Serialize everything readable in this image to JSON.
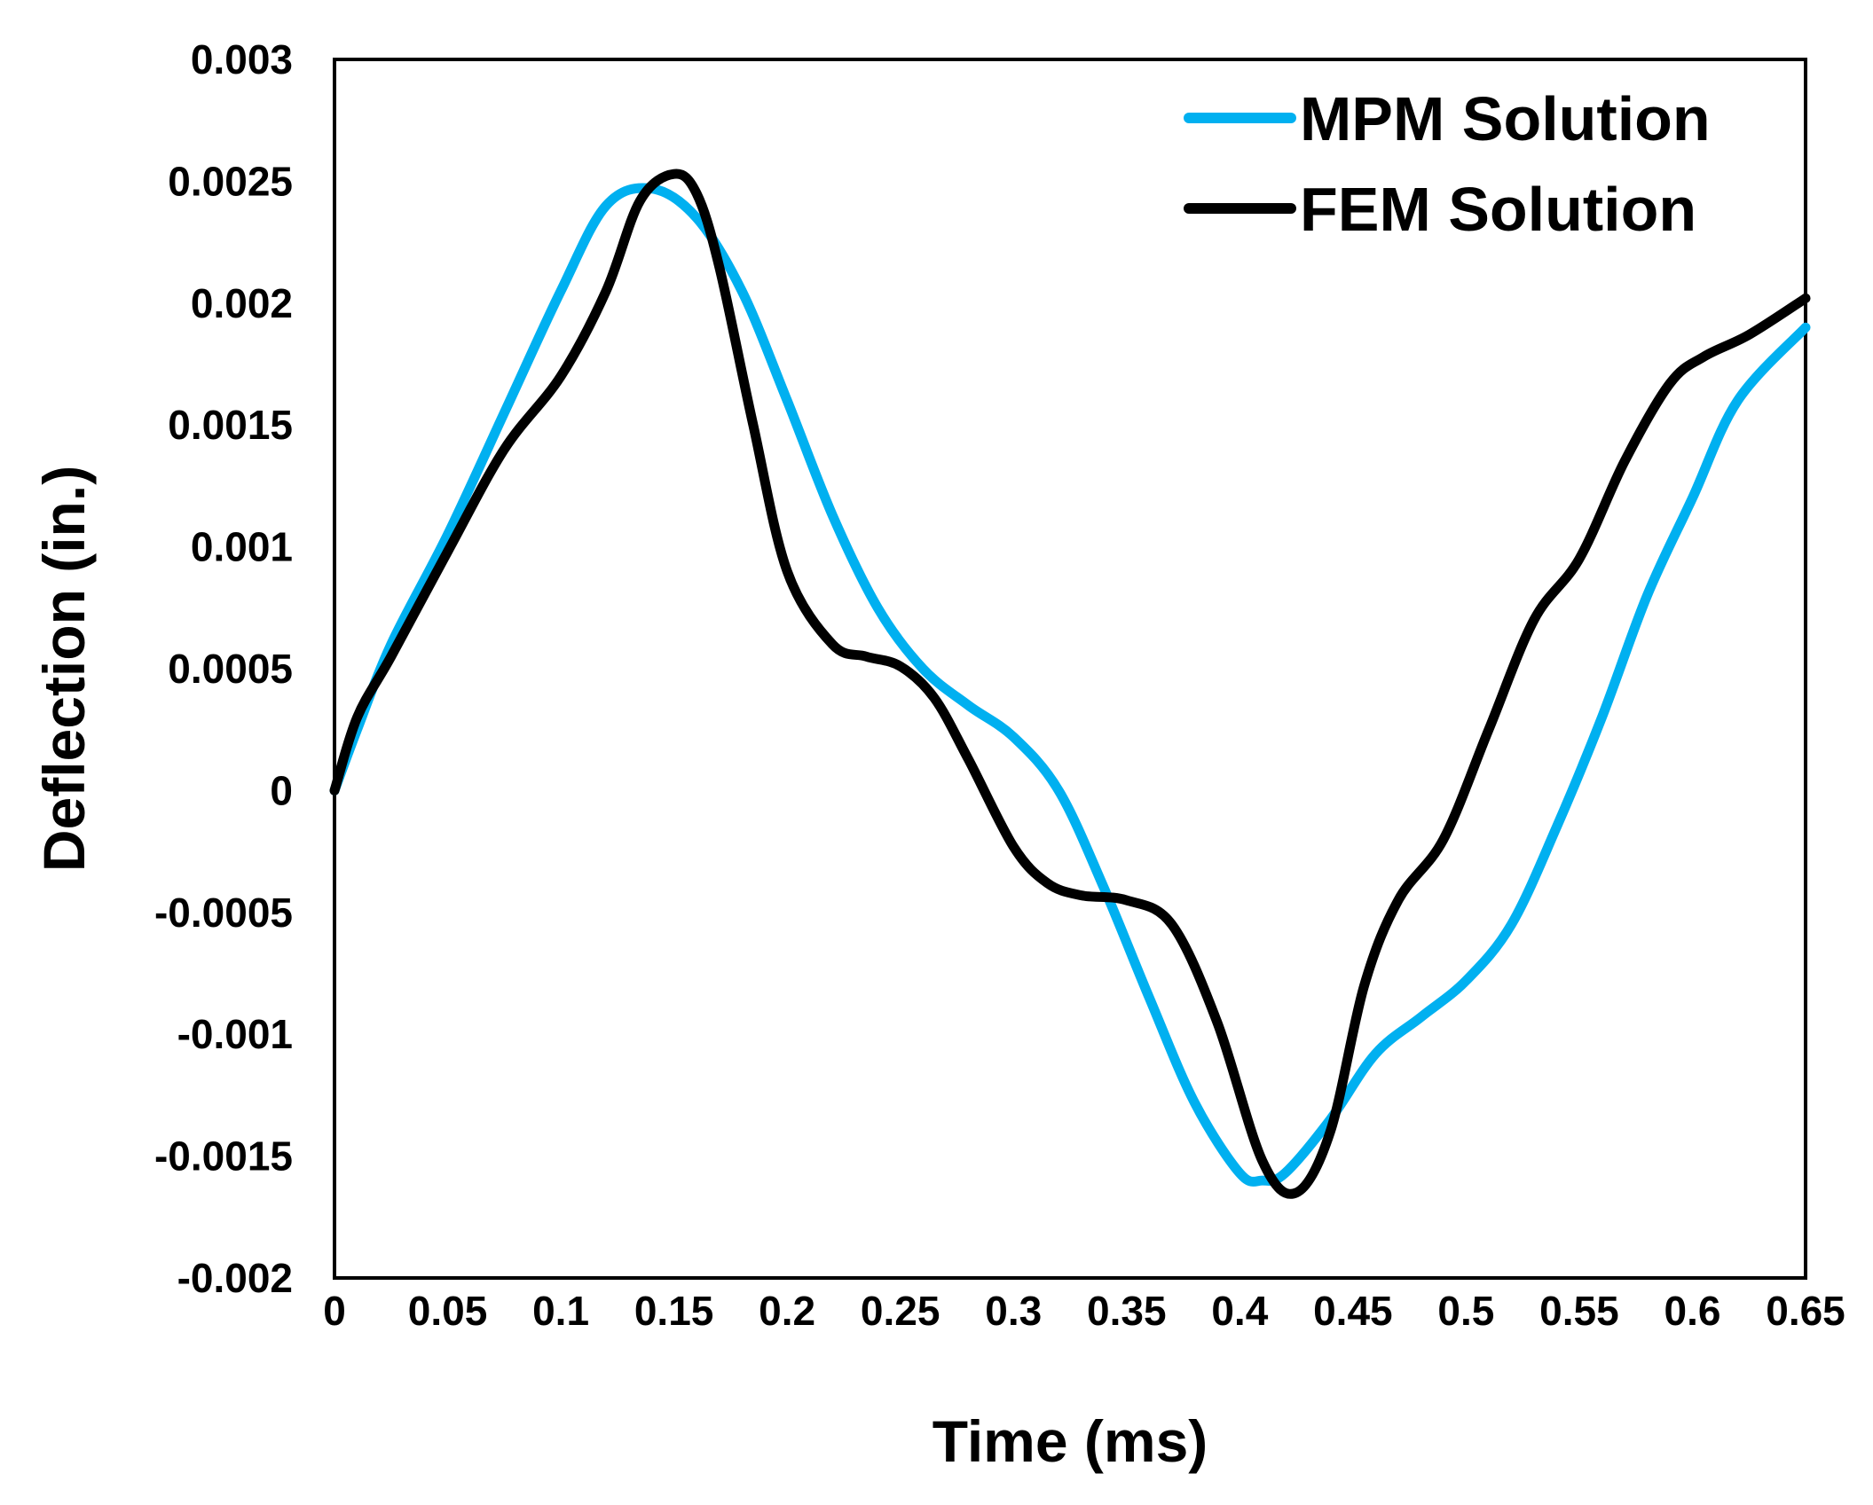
{
  "chart_data": {
    "type": "line",
    "title": "",
    "xlabel": "Time (ms)",
    "ylabel": "Deflection (in.)",
    "xlim": [
      0,
      0.65
    ],
    "ylim": [
      -0.002,
      0.003
    ],
    "grid": false,
    "legend_position": "top-right",
    "x_ticks": [
      "0",
      "0.05",
      "0.1",
      "0.15",
      "0.2",
      "0.25",
      "0.3",
      "0.35",
      "0.4",
      "0.45",
      "0.5",
      "0.55",
      "0.6",
      "0.65"
    ],
    "x_tick_values": [
      0,
      0.05,
      0.1,
      0.15,
      0.2,
      0.25,
      0.3,
      0.35,
      0.4,
      0.45,
      0.5,
      0.55,
      0.6,
      0.65
    ],
    "y_ticks": [
      "0.003",
      "0.0025",
      "0.002",
      "0.0015",
      "0.001",
      "0.0005",
      "0",
      "-0.0005",
      "-0.001",
      "-0.0015",
      "-0.002"
    ],
    "y_tick_values": [
      0.003,
      0.0025,
      0.002,
      0.0015,
      0.001,
      0.0005,
      0,
      -0.0005,
      -0.001,
      -0.0015,
      -0.002
    ],
    "series": [
      {
        "name": "MPM Solution",
        "color": "#00B0F0",
        "x": [
          0,
          0.01,
          0.025,
          0.05,
          0.075,
          0.1,
          0.12,
          0.14,
          0.16,
          0.18,
          0.2,
          0.22,
          0.24,
          0.26,
          0.28,
          0.3,
          0.32,
          0.34,
          0.36,
          0.38,
          0.4,
          0.41,
          0.42,
          0.44,
          0.46,
          0.48,
          0.5,
          0.52,
          0.54,
          0.56,
          0.58,
          0.6,
          0.62,
          0.65
        ],
        "y": [
          0,
          0.00025,
          0.0006,
          0.00105,
          0.00155,
          0.00205,
          0.0024,
          0.00247,
          0.00235,
          0.00205,
          0.0016,
          0.00113,
          0.00075,
          0.0005,
          0.00035,
          0.00022,
          0.0,
          -0.0004,
          -0.00085,
          -0.00128,
          -0.00157,
          -0.0016,
          -0.00157,
          -0.00135,
          -0.00108,
          -0.00093,
          -0.00078,
          -0.00055,
          -0.00015,
          0.0003,
          0.0008,
          0.0012,
          0.0016,
          0.0019
        ]
      },
      {
        "name": "FEM Solution",
        "color": "#000000",
        "x": [
          0,
          0.01,
          0.025,
          0.05,
          0.075,
          0.1,
          0.12,
          0.135,
          0.15,
          0.16,
          0.17,
          0.185,
          0.2,
          0.22,
          0.235,
          0.25,
          0.265,
          0.28,
          0.3,
          0.315,
          0.33,
          0.35,
          0.37,
          0.39,
          0.41,
          0.425,
          0.44,
          0.455,
          0.47,
          0.49,
          0.51,
          0.53,
          0.55,
          0.57,
          0.59,
          0.605,
          0.625,
          0.65
        ],
        "y": [
          0,
          0.0003,
          0.00055,
          0.00098,
          0.0014,
          0.0017,
          0.00205,
          0.00242,
          0.00253,
          0.00245,
          0.00215,
          0.0015,
          0.0009,
          0.0006,
          0.00055,
          0.00051,
          0.00038,
          0.00013,
          -0.00023,
          -0.00038,
          -0.00043,
          -0.00045,
          -0.00055,
          -0.00095,
          -0.00152,
          -0.00165,
          -0.0014,
          -0.0008,
          -0.00045,
          -0.0002,
          0.00025,
          0.0007,
          0.00095,
          0.00135,
          0.00167,
          0.00178,
          0.00187,
          0.00202
        ]
      }
    ]
  }
}
